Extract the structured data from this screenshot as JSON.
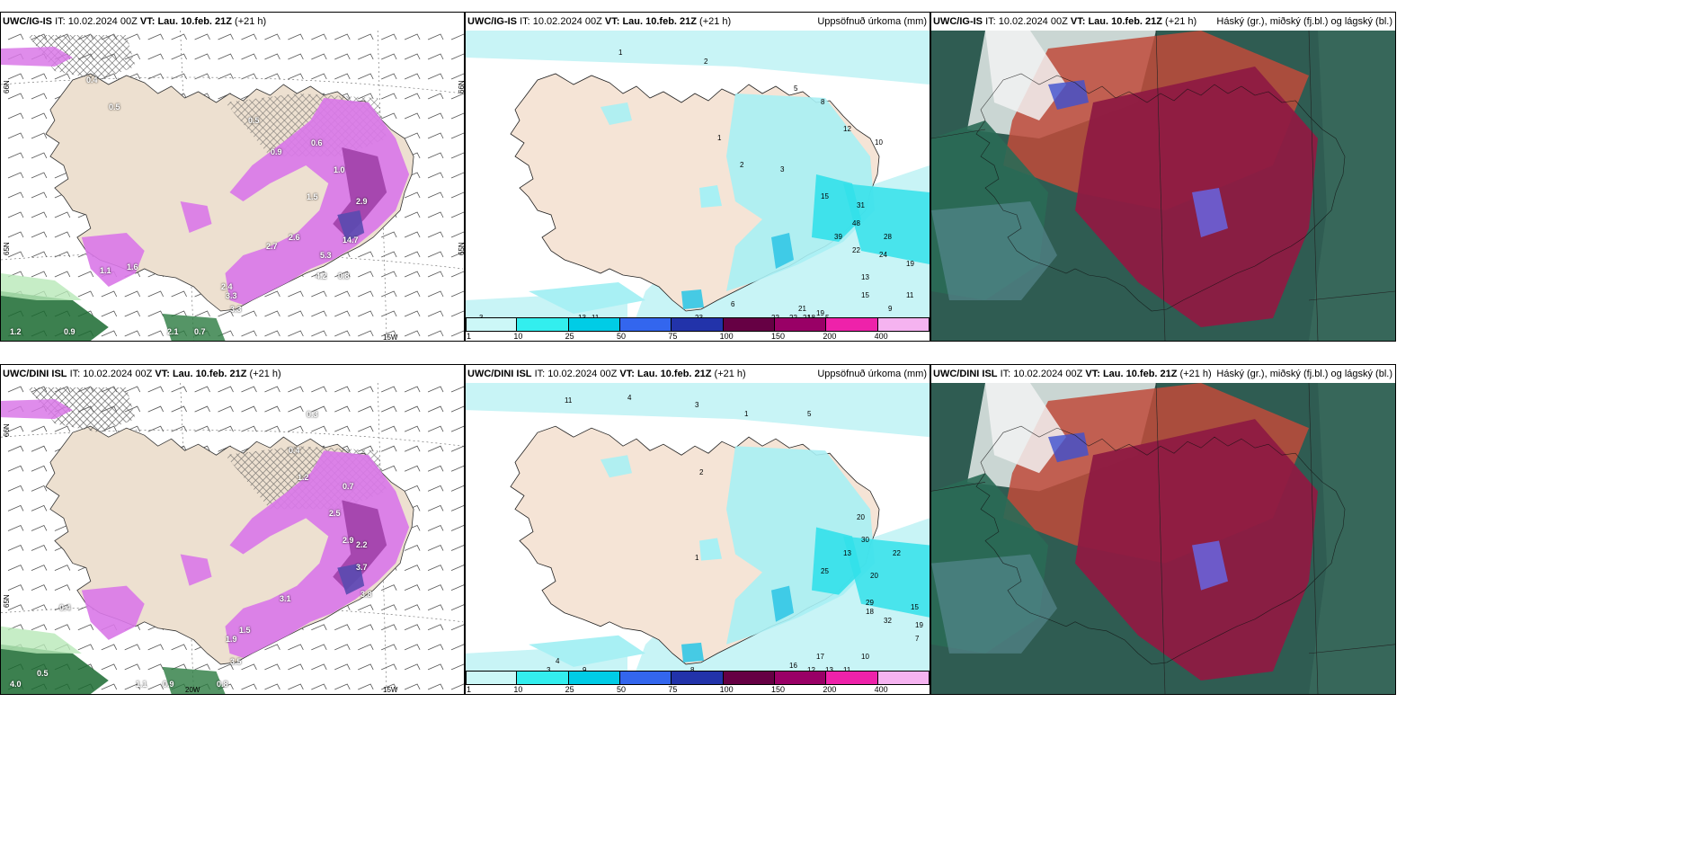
{
  "panels": [
    {
      "model": "UWC/IG-IS",
      "it_label": "IT:",
      "it_value": "10.02.2024 00Z",
      "vt_label": "VT:",
      "vt_value": "Lau. 10.feb. 21Z",
      "lead": "(+21 h)",
      "title_right": "",
      "type": "weather",
      "axis_labels": [
        "66N",
        "65N",
        "65N",
        "66N",
        "15W"
      ]
    },
    {
      "model": "UWC/IG-IS",
      "it_label": "IT:",
      "it_value": "10.02.2024 00Z",
      "vt_label": "VT:",
      "vt_value": "Lau. 10.feb. 21Z",
      "lead": "(+21 h)",
      "title_right": "Uppsöfnuð úrkoma (mm)",
      "type": "precip"
    },
    {
      "model": "UWC/IG-IS",
      "it_label": "IT:",
      "it_value": "10.02.2024 00Z",
      "vt_label": "VT:",
      "vt_value": "Lau. 10.feb. 21Z",
      "lead": "(+21 h)",
      "title_right": "Háský (gr.), miðský (fj.bl.) og lágský (bl.)",
      "type": "cloud"
    },
    {
      "model": "UWC/DINI ISL",
      "it_label": "IT:",
      "it_value": "10.02.2024 00Z",
      "vt_label": "VT:",
      "vt_value": "Lau. 10.feb. 21Z",
      "lead": "(+21 h)",
      "title_right": "",
      "type": "weather",
      "axis_labels": [
        "66N",
        "65N",
        "20W",
        "15W"
      ]
    },
    {
      "model": "UWC/DINI ISL",
      "it_label": "IT:",
      "it_value": "10.02.2024 00Z",
      "vt_label": "VT:",
      "vt_value": "Lau. 10.feb. 21Z",
      "lead": "(+21 h)",
      "title_right": "Uppsöfnuð úrkoma (mm)",
      "type": "precip"
    },
    {
      "model": "UWC/DINI ISL",
      "it_label": "IT:",
      "it_value": "10.02.2024 00Z",
      "vt_label": "VT:",
      "vt_value": "Lau. 10.feb. 21Z",
      "lead": "(+21 h)",
      "title_right": "Háský (gr.), miðský (fj.bl.) og lágský (bl.)",
      "type": "cloud"
    }
  ],
  "precip_legend": {
    "ticks": [
      "1",
      "10",
      "25",
      "50",
      "75",
      "100",
      "150",
      "200",
      "400"
    ],
    "colors": [
      "#ccf7f7",
      "#33eeee",
      "#00cce6",
      "#3366ee",
      "#2233aa",
      "#660044",
      "#990066",
      "#ee22aa",
      "#f5b3f0"
    ]
  },
  "weather_values_top": [
    "0.4",
    "0.5",
    "0.5",
    "0.9",
    "0.6",
    "1.0",
    "1.5",
    "2.6",
    "2.7",
    "2.9",
    "14.7",
    "5.3",
    "4.2",
    "3.3",
    "1.6",
    "1.1",
    "3.3",
    "0.8",
    "1.2",
    "0.9",
    "2.4",
    "0.7",
    "2.1"
  ],
  "weather_values_bottom": [
    "0.3",
    "0.4",
    "1.2",
    "2.5",
    "2.9",
    "2.2",
    "3.7",
    "3.1",
    "3.8",
    "3.5",
    "1.9",
    "1.5",
    "0.4",
    "4.0",
    "0.9",
    "0.8",
    "1.1",
    "0.7",
    "0.5"
  ],
  "precip_values_top": [
    "1",
    "2",
    "1",
    "2",
    "3",
    "5",
    "8",
    "12",
    "10",
    "15",
    "31",
    "48",
    "39",
    "22",
    "28",
    "24",
    "19",
    "13",
    "11",
    "15",
    "9",
    "23",
    "22",
    "22",
    "21",
    "21",
    "19",
    "18",
    "13",
    "11",
    "6",
    "3",
    "5"
  ],
  "precip_values_bottom": [
    "11",
    "4",
    "3",
    "1",
    "5",
    "13",
    "25",
    "20",
    "30",
    "22",
    "29",
    "32",
    "15",
    "19",
    "16",
    "17",
    "13",
    "12",
    "11",
    "10",
    "7",
    "20",
    "18",
    "9",
    "8",
    "4",
    "3",
    "2",
    "1"
  ]
}
